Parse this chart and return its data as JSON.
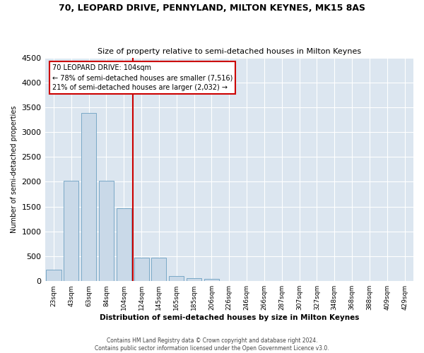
{
  "title_line1": "70, LEOPARD DRIVE, PENNYLAND, MILTON KEYNES, MK15 8AS",
  "title_line2": "Size of property relative to semi-detached houses in Milton Keynes",
  "xlabel": "Distribution of semi-detached houses by size in Milton Keynes",
  "ylabel": "Number of semi-detached properties",
  "footer_line1": "Contains HM Land Registry data © Crown copyright and database right 2024.",
  "footer_line2": "Contains public sector information licensed under the Open Government Licence v3.0.",
  "annotation_line1": "70 LEOPARD DRIVE: 104sqm",
  "annotation_line2": "← 78% of semi-detached houses are smaller (7,516)",
  "annotation_line3": "21% of semi-detached houses are larger (2,032) →",
  "bar_color": "#c9d9e8",
  "bar_edge_color": "#6a9fc0",
  "highlight_color": "#cc0000",
  "bg_color": "#dce6f0",
  "grid_color": "#ffffff",
  "categories": [
    "23sqm",
    "43sqm",
    "63sqm",
    "84sqm",
    "104sqm",
    "124sqm",
    "145sqm",
    "165sqm",
    "185sqm",
    "206sqm",
    "226sqm",
    "246sqm",
    "266sqm",
    "287sqm",
    "307sqm",
    "327sqm",
    "348sqm",
    "368sqm",
    "388sqm",
    "409sqm",
    "429sqm"
  ],
  "values": [
    230,
    2020,
    3390,
    2020,
    1460,
    470,
    470,
    105,
    55,
    50,
    0,
    0,
    0,
    0,
    0,
    0,
    0,
    0,
    0,
    0,
    0
  ],
  "highlight_index": 4,
  "ylim": [
    0,
    4500
  ],
  "yticks": [
    0,
    500,
    1000,
    1500,
    2000,
    2500,
    3000,
    3500,
    4000,
    4500
  ]
}
